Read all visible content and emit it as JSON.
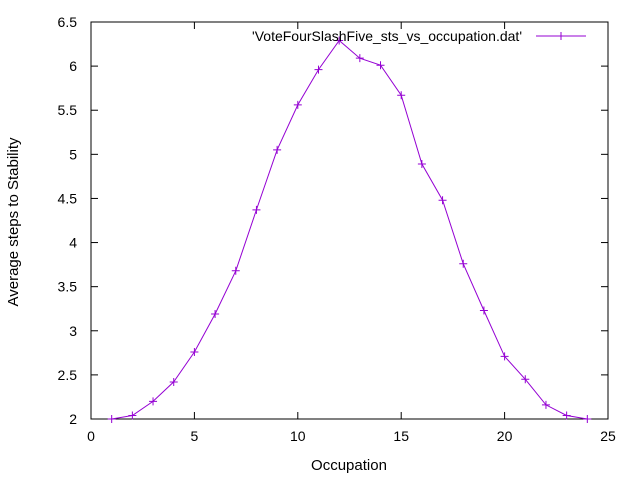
{
  "chart_data": {
    "type": "line",
    "xlabel": "Occupation",
    "ylabel": "Average steps to Stability",
    "xlim": [
      0,
      25
    ],
    "ylim": [
      2,
      6.5
    ],
    "xticks": [
      0,
      5,
      10,
      15,
      20,
      25
    ],
    "yticks": [
      2,
      2.5,
      3,
      3.5,
      4,
      4.5,
      5,
      5.5,
      6,
      6.5
    ],
    "grid": false,
    "legend_position": "top-right",
    "series": [
      {
        "name": "'VoteFourSlashFive_sts_vs_occupation.dat'",
        "color": "#9400d3",
        "marker": "plus",
        "x": [
          1,
          2,
          3,
          4,
          5,
          6,
          7,
          8,
          9,
          10,
          11,
          12,
          13,
          14,
          15,
          16,
          17,
          18,
          19,
          20,
          21,
          22,
          23,
          24
        ],
        "y": [
          2.0,
          2.04,
          2.2,
          2.42,
          2.76,
          3.19,
          3.68,
          4.37,
          5.05,
          5.56,
          5.96,
          6.29,
          6.09,
          6.01,
          5.67,
          4.89,
          4.48,
          3.76,
          3.23,
          2.71,
          2.45,
          2.16,
          2.04,
          2.0
        ]
      }
    ]
  }
}
